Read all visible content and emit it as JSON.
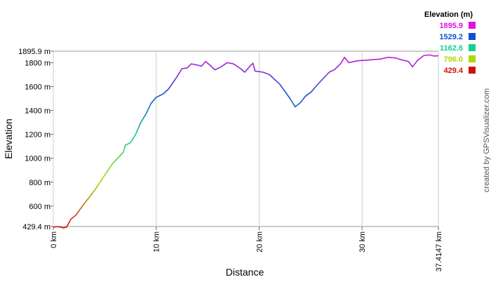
{
  "chart_data": {
    "type": "line",
    "x_label": "Distance",
    "y_label": "Elevation",
    "credit": "created by GPSVisualizer.com",
    "legend_title": "Elevation (m)",
    "color_scale": [
      {
        "label": "1895.9",
        "color": "#e010e0"
      },
      {
        "label": "1529.2",
        "color": "#1050d0"
      },
      {
        "label": "1162.6",
        "color": "#10d090"
      },
      {
        "label": "796.0",
        "color": "#b0d800"
      },
      {
        "label": "429.4",
        "color": "#d01010"
      }
    ],
    "x": [
      0,
      0.5,
      1.0,
      1.3,
      1.7,
      2.2,
      3.0,
      4.0,
      5.0,
      5.8,
      6.8,
      7.0,
      7.5,
      8.0,
      8.5,
      9.0,
      9.5,
      10.0,
      10.7,
      11.2,
      12.0,
      12.5,
      13.0,
      13.4,
      14.0,
      14.4,
      14.8,
      15.2,
      15.7,
      16.3,
      16.9,
      17.5,
      18.2,
      18.6,
      19.1,
      19.4,
      19.6,
      20.4,
      21.0,
      22.0,
      23.0,
      23.5,
      24.0,
      24.5,
      25.0,
      25.6,
      26.2,
      26.8,
      27.3,
      27.9,
      28.3,
      28.7,
      29.5,
      30.3,
      31.0,
      31.8,
      32.5,
      33.2,
      34.0,
      34.5,
      34.9,
      35.4,
      36.0,
      36.6,
      37.0,
      37.4147
    ],
    "series": [
      {
        "name": "Elevation",
        "values": [
          425,
          428,
          418,
          425,
          490,
          525,
          620,
          730,
          860,
          960,
          1050,
          1110,
          1130,
          1200,
          1300,
          1370,
          1460,
          1510,
          1540,
          1580,
          1680,
          1750,
          1755,
          1790,
          1780,
          1770,
          1810,
          1780,
          1740,
          1765,
          1800,
          1790,
          1750,
          1720,
          1770,
          1795,
          1730,
          1720,
          1700,
          1620,
          1500,
          1430,
          1465,
          1520,
          1550,
          1610,
          1665,
          1720,
          1740,
          1790,
          1845,
          1800,
          1815,
          1820,
          1825,
          1830,
          1845,
          1840,
          1820,
          1810,
          1765,
          1820,
          1860,
          1865,
          1855,
          1858
        ]
      }
    ],
    "xlim": [
      0,
      37.4147
    ],
    "xticks": [
      {
        "value": 0,
        "label": "0 km"
      },
      {
        "value": 10,
        "label": "10 km"
      },
      {
        "value": 20,
        "label": "20 km"
      },
      {
        "value": 30,
        "label": "30 km"
      },
      {
        "value": 37.4147,
        "label": "37.4147 km"
      }
    ],
    "ylim": [
      429.4,
      1895.9
    ],
    "yticks": [
      {
        "value": 429.4,
        "label": "429.4 m"
      },
      {
        "value": 600,
        "label": "600 m"
      },
      {
        "value": 800,
        "label": "800 m"
      },
      {
        "value": 1000,
        "label": "1000 m"
      },
      {
        "value": 1200,
        "label": "1200 m"
      },
      {
        "value": 1400,
        "label": "1400 m"
      },
      {
        "value": 1600,
        "label": "1600 m"
      },
      {
        "value": 1800,
        "label": "1800 m"
      },
      {
        "value": 1895.9,
        "label": "1895.9 m"
      }
    ],
    "grid": "x"
  }
}
